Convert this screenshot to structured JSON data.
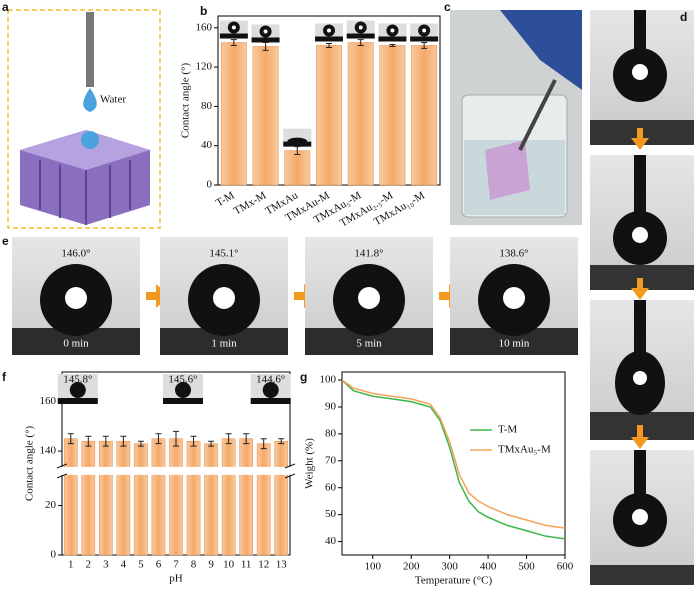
{
  "panel_labels": [
    "a",
    "b",
    "c",
    "d",
    "e",
    "f",
    "g"
  ],
  "panel_a": {
    "text": "Water"
  },
  "panel_e": {
    "frames": [
      {
        "angle": "146.0°",
        "time": "0 min"
      },
      {
        "angle": "145.1°",
        "time": "1 min"
      },
      {
        "angle": "141.8°",
        "time": "5 min"
      },
      {
        "angle": "138.6°",
        "time": "10 min"
      }
    ]
  },
  "chart_data": [
    {
      "type": "bar",
      "ylabel": "Contact angle (°)",
      "categories": [
        "T-M",
        "TMx-M",
        "TMxAu",
        "TMxAu-M",
        "TMxAu₅-M",
        "TMxAu₂.₅-M",
        "TMxAu₁₀-M"
      ],
      "values": [
        145,
        141,
        35,
        142,
        145,
        142,
        142
      ],
      "errors": [
        3,
        4,
        4,
        2,
        3,
        1,
        3
      ],
      "color": "#f6b27c",
      "ylim": [
        0,
        172
      ],
      "yticks": [
        0,
        40,
        80,
        120,
        160
      ]
    },
    {
      "type": "bar",
      "ylabel": "Contact angle (°)",
      "xlabel": "pH",
      "categories": [
        "1",
        "2",
        "3",
        "4",
        "5",
        "6",
        "7",
        "8",
        "9",
        "10",
        "11",
        "12",
        "13"
      ],
      "values": [
        145,
        144,
        144,
        144,
        143,
        145,
        145,
        144,
        143,
        145,
        145,
        143,
        144
      ],
      "errors": [
        2,
        2,
        2,
        2,
        1,
        2,
        3,
        2,
        1,
        2,
        2,
        2,
        1
      ],
      "color": "#f6b27c",
      "ylim": [
        0,
        172
      ],
      "ybreak": [
        32,
        134
      ],
      "yticks": [
        0,
        20,
        140,
        160
      ],
      "annotations": [
        "145.8°",
        "145.6°",
        "144.6°"
      ]
    },
    {
      "type": "line",
      "xlabel": "Temperature (°C)",
      "ylabel": "Weight (%)",
      "x": [
        20,
        50,
        100,
        150,
        200,
        250,
        275,
        300,
        325,
        350,
        375,
        400,
        450,
        500,
        550,
        600
      ],
      "series": [
        {
          "name": "T-M",
          "color": "#3db54a",
          "values": [
            100,
            96,
            94,
            93,
            92,
            90,
            85,
            75,
            62,
            55,
            51,
            49,
            46,
            44,
            42,
            41
          ]
        },
        {
          "name": "TMxAu₅-M",
          "color": "#f5a35a",
          "values": [
            100,
            97,
            95,
            94,
            93,
            91,
            86,
            77,
            65,
            58,
            55,
            53,
            50,
            48,
            46,
            45
          ]
        }
      ],
      "xlim": [
        20,
        600
      ],
      "xticks": [
        100,
        200,
        300,
        400,
        500,
        600
      ],
      "ylim": [
        35,
        103
      ],
      "yticks": [
        40,
        50,
        60,
        70,
        80,
        90,
        100
      ],
      "legend": "right"
    }
  ]
}
